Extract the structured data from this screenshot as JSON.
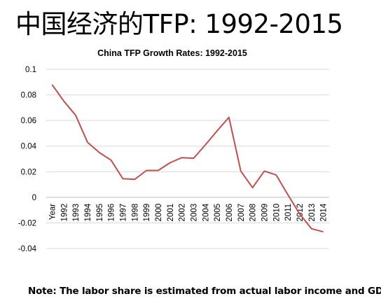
{
  "slide": {
    "title": "中国经济的TFP: 1992-2015",
    "footnote": "Note: The labor share is estimated from actual labor income and GDP."
  },
  "chart_data": {
    "type": "line",
    "title": "China TFP Growth Rates: 1992-2015",
    "xlabel": "",
    "ylabel": "",
    "categories": [
      "Year",
      "1992",
      "1993",
      "1994",
      "1995",
      "1996",
      "1997",
      "1998",
      "1999",
      "2000",
      "2001",
      "2002",
      "2003",
      "2004",
      "2005",
      "2006",
      "2007",
      "2008",
      "2009",
      "2010",
      "2011",
      "2012",
      "2013",
      "2014"
    ],
    "y_ticks": [
      "0.1",
      "0.08",
      "0.06",
      "0.04",
      "0.02",
      "0",
      "-0.02",
      "-0.04"
    ],
    "ylim": [
      -0.04,
      0.1
    ],
    "grid": true,
    "series": [
      {
        "color": "#c0504d",
        "values": [
          0.088,
          0.075,
          0.064,
          0.043,
          0.035,
          0.029,
          0.0145,
          0.014,
          0.021,
          0.021,
          0.027,
          0.031,
          0.0305,
          0.041,
          0.052,
          0.0625,
          0.0205,
          0.0075,
          0.0205,
          0.0175,
          0.002,
          -0.013,
          -0.0245,
          -0.027
        ]
      }
    ]
  }
}
